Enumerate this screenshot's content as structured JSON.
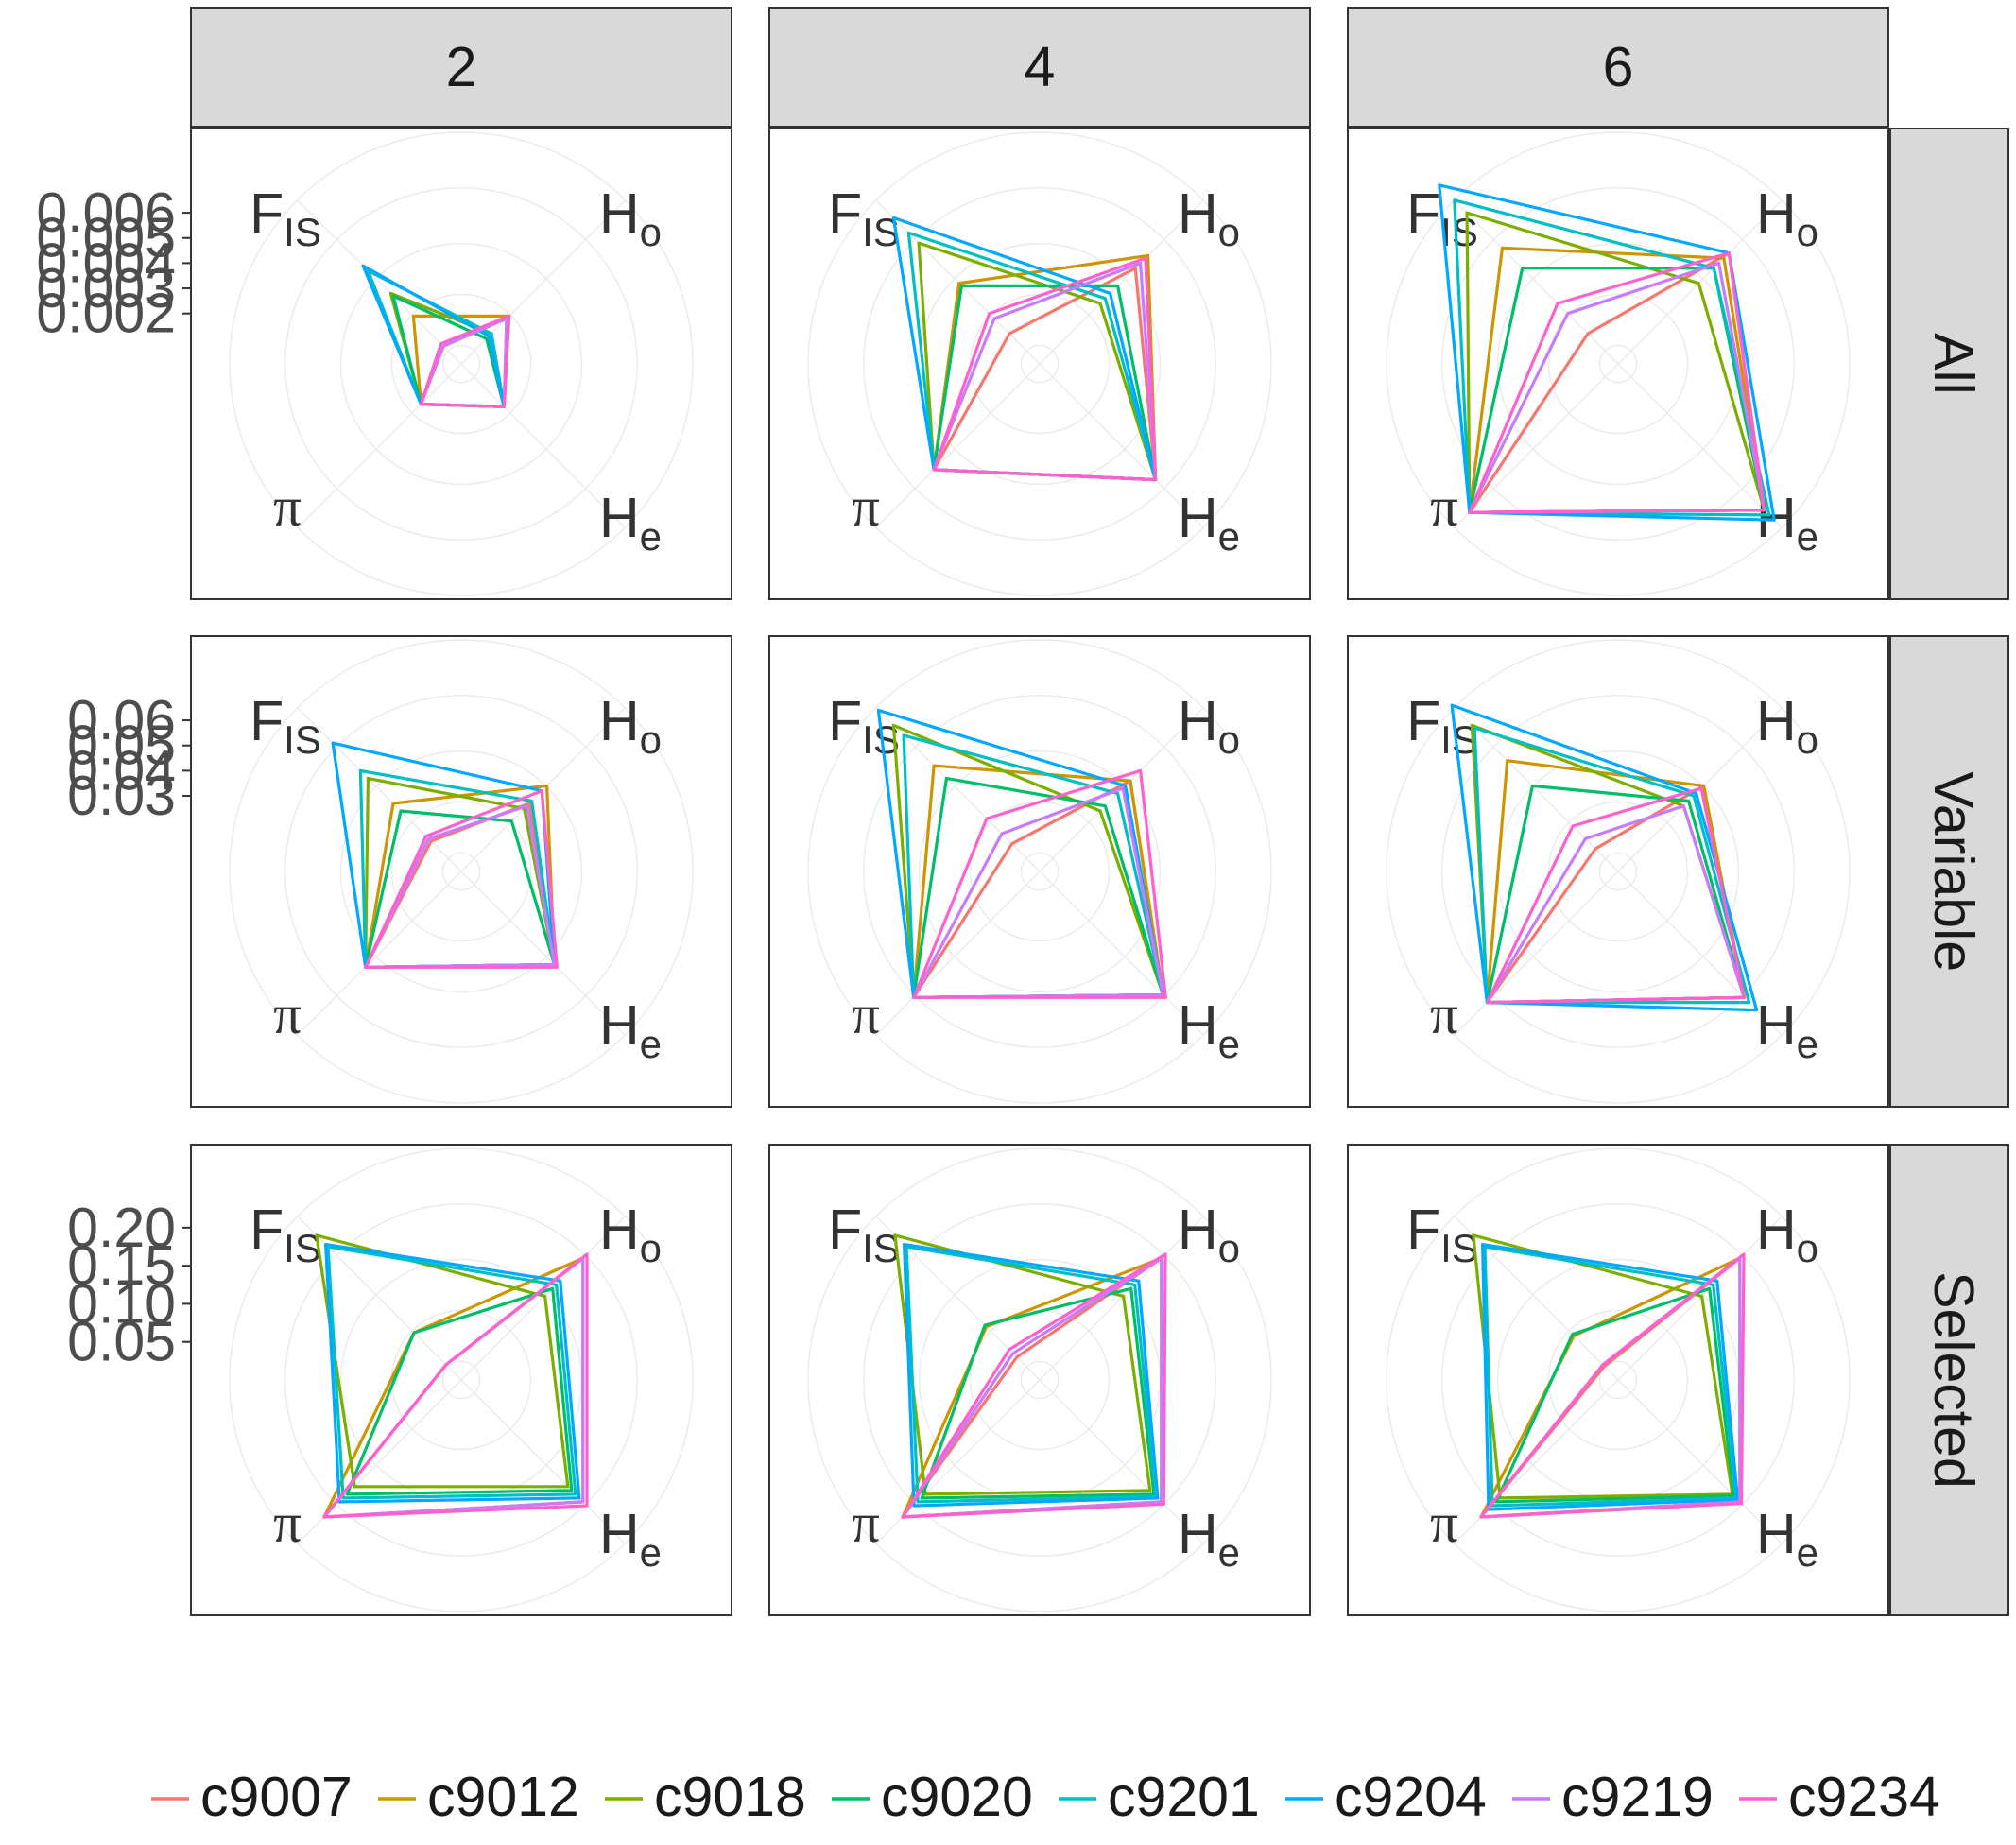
{
  "chart_data": {
    "type": "radar",
    "facet_columns": [
      "2",
      "4",
      "6"
    ],
    "facet_rows": [
      "All",
      "Variable",
      "Selected"
    ],
    "axes": [
      {
        "main": "F",
        "sub": "IS"
      },
      {
        "main": "H",
        "sub": "o"
      },
      {
        "main": "H",
        "sub": "e"
      },
      {
        "main": "π",
        "sub": ""
      }
    ],
    "axis_order_note": "order: F_IS, H_o, H_e, π",
    "row_scales": [
      {
        "row": "All",
        "ticks": [
          "0.006",
          "0.005",
          "0.004",
          "0.003",
          "0.002"
        ],
        "tick_values": [
          0.006,
          0.005,
          0.004,
          0.003,
          0.002
        ],
        "rmin": 0.0,
        "rmax": 0.0065
      },
      {
        "row": "Variable",
        "ticks": [
          "0.06",
          "0.05",
          "0.04",
          "0.03"
        ],
        "tick_values": [
          0.06,
          0.05,
          0.04,
          0.03
        ],
        "rmin": 0.0,
        "rmax": 0.065
      },
      {
        "row": "Selected",
        "ticks": [
          "0.20",
          "0.15",
          "0.10",
          "0.05"
        ],
        "tick_values": [
          0.2,
          0.15,
          0.1,
          0.05
        ],
        "rmin": 0.0,
        "rmax": 0.215
      }
    ],
    "series": [
      {
        "name": "c9007",
        "color": "#F8766D"
      },
      {
        "name": "c9012",
        "color": "#CD9600"
      },
      {
        "name": "c9018",
        "color": "#7CAE00"
      },
      {
        "name": "c9020",
        "color": "#00BE67"
      },
      {
        "name": "c9201",
        "color": "#00BFC4"
      },
      {
        "name": "c9204",
        "color": "#00A9FF"
      },
      {
        "name": "c9219",
        "color": "#C77CFF"
      },
      {
        "name": "c9234",
        "color": "#FF61CC"
      }
    ],
    "panels": [
      {
        "row": "All",
        "col": "2",
        "values": [
          [
            0.0008,
            0.0018,
            0.0017,
            0.0016
          ],
          [
            0.0019,
            0.0019,
            0.0017,
            0.0016
          ],
          [
            0.0028,
            0.0012,
            0.0017,
            0.0016
          ],
          [
            0.0027,
            0.001,
            0.0017,
            0.0016
          ],
          [
            0.0037,
            0.0012,
            0.0017,
            0.0016
          ],
          [
            0.0039,
            0.0011,
            0.0017,
            0.0016
          ],
          [
            0.0007,
            0.0018,
            0.0017,
            0.0016
          ],
          [
            0.0008,
            0.0019,
            0.0017,
            0.0016
          ]
        ]
      },
      {
        "row": "All",
        "col": "4",
        "values": [
          [
            0.0012,
            0.0038,
            0.0046,
            0.0042
          ],
          [
            0.0032,
            0.0043,
            0.0046,
            0.0042
          ],
          [
            0.0048,
            0.0024,
            0.0046,
            0.0042
          ],
          [
            0.0031,
            0.0031,
            0.0046,
            0.0042
          ],
          [
            0.0052,
            0.0026,
            0.0046,
            0.0042
          ],
          [
            0.0058,
            0.0028,
            0.0046,
            0.0042
          ],
          [
            0.0018,
            0.004,
            0.0046,
            0.0042
          ],
          [
            0.002,
            0.0042,
            0.0046,
            0.0042
          ]
        ]
      },
      {
        "row": "All",
        "col": "6",
        "values": [
          [
            0.0012,
            0.0044,
            0.0058,
            0.0059
          ],
          [
            0.0046,
            0.0042,
            0.0058,
            0.0059
          ],
          [
            0.006,
            0.0032,
            0.0058,
            0.0059
          ],
          [
            0.0038,
            0.0038,
            0.0058,
            0.0059
          ],
          [
            0.0065,
            0.0038,
            0.006,
            0.0059
          ],
          [
            0.0071,
            0.0044,
            0.0062,
            0.0059
          ],
          [
            0.002,
            0.004,
            0.0058,
            0.0059
          ],
          [
            0.0024,
            0.0044,
            0.0058,
            0.0059
          ]
        ]
      },
      {
        "row": "Variable",
        "col": "2",
        "values": [
          [
            0.012,
            0.027,
            0.037,
            0.038
          ],
          [
            0.027,
            0.034,
            0.037,
            0.038
          ],
          [
            0.037,
            0.025,
            0.037,
            0.038
          ],
          [
            0.024,
            0.02,
            0.037,
            0.038
          ],
          [
            0.04,
            0.028,
            0.037,
            0.038
          ],
          [
            0.051,
            0.032,
            0.037,
            0.038
          ],
          [
            0.013,
            0.026,
            0.037,
            0.038
          ],
          [
            0.014,
            0.032,
            0.038,
            0.038
          ]
        ]
      },
      {
        "row": "Variable",
        "col": "4",
        "values": [
          [
            0.011,
            0.036,
            0.049,
            0.05
          ],
          [
            0.042,
            0.036,
            0.049,
            0.05
          ],
          [
            0.058,
            0.024,
            0.049,
            0.05
          ],
          [
            0.037,
            0.026,
            0.049,
            0.05
          ],
          [
            0.054,
            0.031,
            0.049,
            0.05
          ],
          [
            0.064,
            0.034,
            0.049,
            0.05
          ],
          [
            0.015,
            0.033,
            0.049,
            0.05
          ],
          [
            0.021,
            0.04,
            0.05,
            0.05
          ]
        ]
      },
      {
        "row": "Variable",
        "col": "6",
        "values": [
          [
            0.009,
            0.034,
            0.05,
            0.052
          ],
          [
            0.044,
            0.034,
            0.05,
            0.052
          ],
          [
            0.058,
            0.026,
            0.05,
            0.052
          ],
          [
            0.034,
            0.028,
            0.05,
            0.052
          ],
          [
            0.057,
            0.03,
            0.052,
            0.052
          ],
          [
            0.066,
            0.031,
            0.055,
            0.052
          ],
          [
            0.013,
            0.026,
            0.05,
            0.052
          ],
          [
            0.018,
            0.033,
            0.05,
            0.052
          ]
        ]
      },
      {
        "row": "Selected",
        "col": "2",
        "values": [
          [
            0.02,
            0.16,
            0.16,
            0.18
          ],
          [
            0.062,
            0.16,
            0.16,
            0.18
          ],
          [
            0.19,
            0.11,
            0.14,
            0.14
          ],
          [
            0.062,
            0.12,
            0.145,
            0.15
          ],
          [
            0.175,
            0.125,
            0.15,
            0.155
          ],
          [
            0.178,
            0.13,
            0.155,
            0.16
          ],
          [
            0.02,
            0.16,
            0.16,
            0.18
          ],
          [
            0.02,
            0.165,
            0.165,
            0.18
          ]
        ]
      },
      {
        "row": "Selected",
        "col": "4",
        "values": [
          [
            0.03,
            0.16,
            0.16,
            0.18
          ],
          [
            0.07,
            0.16,
            0.16,
            0.18
          ],
          [
            0.19,
            0.11,
            0.145,
            0.15
          ],
          [
            0.072,
            0.12,
            0.15,
            0.155
          ],
          [
            0.175,
            0.125,
            0.153,
            0.16
          ],
          [
            0.178,
            0.13,
            0.155,
            0.165
          ],
          [
            0.035,
            0.16,
            0.16,
            0.18
          ],
          [
            0.04,
            0.165,
            0.163,
            0.18
          ]
        ]
      },
      {
        "row": "Selected",
        "col": "6",
        "values": [
          [
            0.018,
            0.16,
            0.16,
            0.18
          ],
          [
            0.058,
            0.16,
            0.16,
            0.18
          ],
          [
            0.19,
            0.11,
            0.15,
            0.155
          ],
          [
            0.06,
            0.12,
            0.152,
            0.16
          ],
          [
            0.175,
            0.125,
            0.155,
            0.165
          ],
          [
            0.178,
            0.13,
            0.157,
            0.17
          ],
          [
            0.02,
            0.16,
            0.16,
            0.18
          ],
          [
            0.02,
            0.165,
            0.162,
            0.18
          ]
        ]
      }
    ]
  }
}
